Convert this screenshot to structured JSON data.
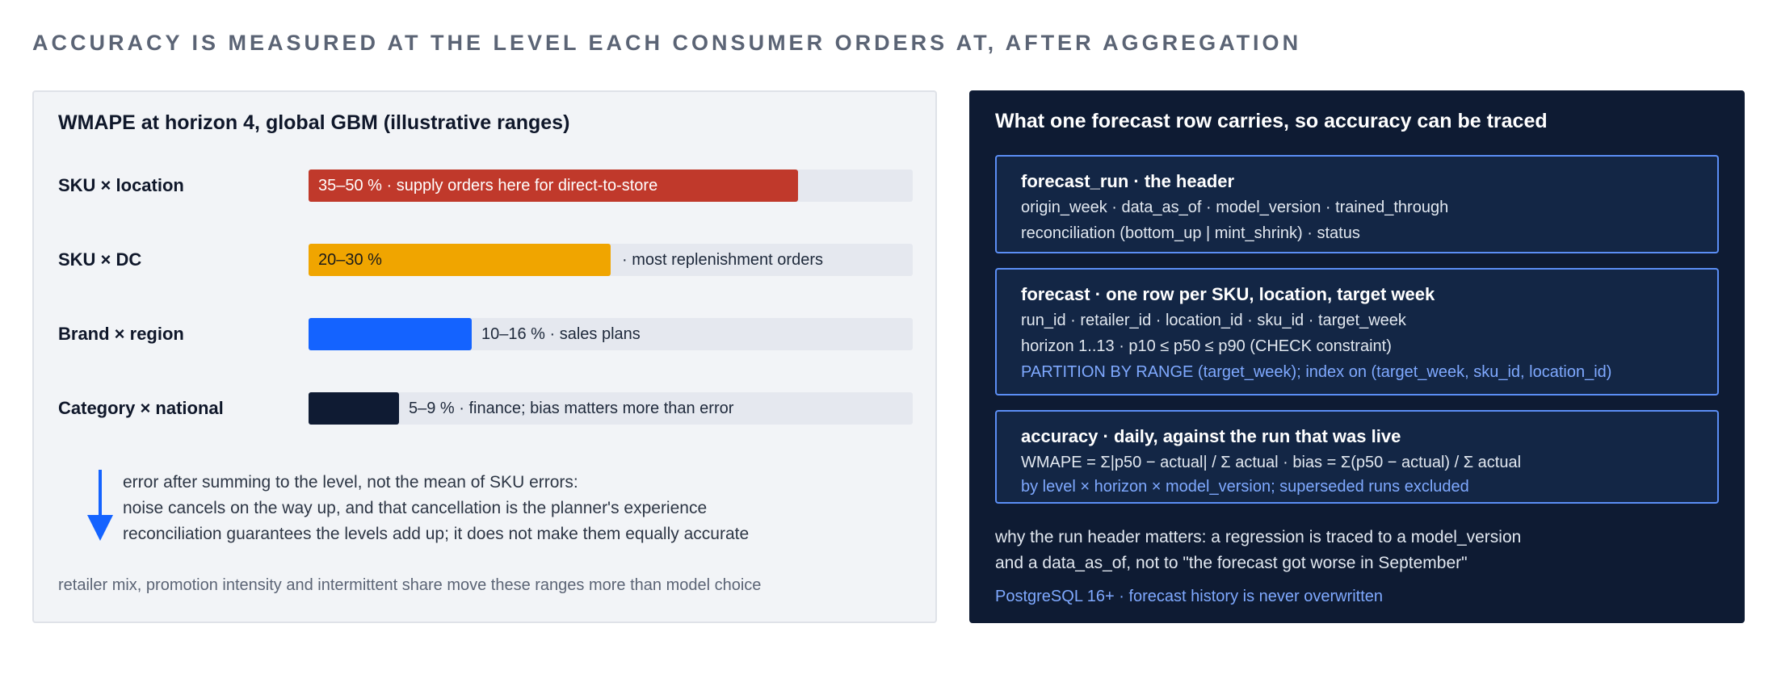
{
  "headline": "ACCURACY IS MEASURED AT THE LEVEL EACH CONSUMER ORDERS AT, AFTER AGGREGATION",
  "left_panel": {
    "title": "WMAPE at horizon 4, global GBM (illustrative ranges)",
    "levels": [
      {
        "label": "SKU × location",
        "text": "35–50 % · supply orders here for direct-to-store",
        "fill_fraction": 0.81,
        "color": "#c0392b",
        "text_placement": "inside",
        "text_color": "#ffffff"
      },
      {
        "label": "SKU × DC",
        "text": "20–30 %",
        "extra_text": "· most replenishment orders",
        "fill_fraction": 0.5,
        "color": "#f0a500",
        "text_placement": "inside",
        "text_color": "#1a1a1a"
      },
      {
        "label": "Brand × region",
        "text": "10–16 % · sales plans",
        "fill_fraction": 0.27,
        "color": "#1463ff",
        "text_placement": "outside",
        "text_color": "#1e293b"
      },
      {
        "label": "Category × national",
        "text": "5–9 % · finance; bias matters more than error",
        "fill_fraction": 0.15,
        "color": "#0f1b33",
        "text_placement": "outside",
        "text_color": "#1e293b"
      }
    ],
    "arrow_color": "#1463ff",
    "note_lines": [
      "error after summing to the level, not the mean of SKU errors:",
      "noise cancels on the way up, and that cancellation is the planner's experience",
      "reconciliation guarantees the levels add up; it does not make them equally accurate"
    ],
    "footer": "retailer mix, promotion intensity and intermittent share move these ranges more than model choice"
  },
  "right_panel": {
    "title": "What one forecast row carries, so accuracy can be traced",
    "cards": [
      {
        "title": "forecast_run · the header",
        "lines": [
          {
            "text": "origin_week · data_as_of · model_version · trained_through",
            "accent": false
          },
          {
            "text": "reconciliation (bottom_up | mint_shrink) · status",
            "accent": false
          }
        ]
      },
      {
        "title": "forecast · one row per SKU, location, target week",
        "lines": [
          {
            "text": "run_id · retailer_id · location_id · sku_id · target_week",
            "accent": false
          },
          {
            "text": "horizon 1..13 · p10 ≤ p50 ≤ p90 (CHECK constraint)",
            "accent": false
          },
          {
            "text": "PARTITION BY RANGE (target_week); index on (target_week, sku_id, location_id)",
            "accent": true
          }
        ]
      },
      {
        "title": "accuracy · daily, against the run that was live",
        "lines": [
          {
            "text": "WMAPE = Σ|p50 − actual| / Σ actual · bias = Σ(p50 − actual) / Σ actual",
            "accent": false
          },
          {
            "text": "by level × horizon × model_version; superseded runs excluded",
            "accent": true
          }
        ]
      }
    ],
    "explain_lines": [
      "why the run header matters: a regression is traced to a model_version",
      "and a data_as_of, not to \"the forecast got worse in September\""
    ],
    "footer": "PostgreSQL 16+ · forecast history is never overwritten"
  }
}
